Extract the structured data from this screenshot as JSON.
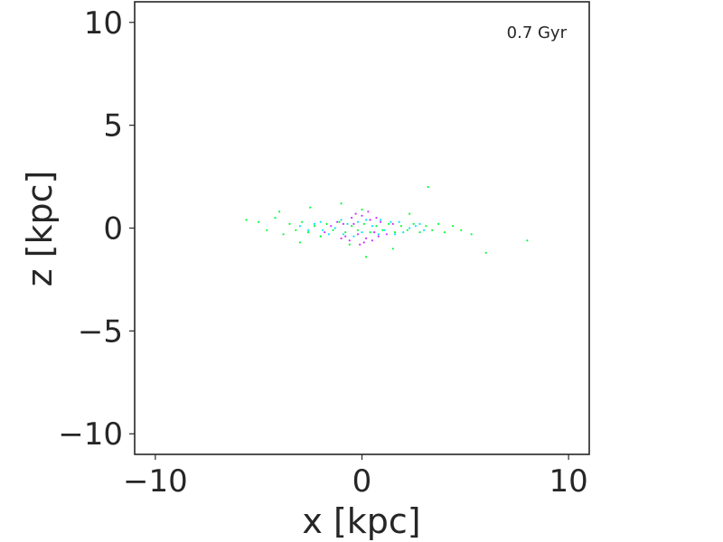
{
  "chart_data": {
    "type": "scatter",
    "xlabel": "x [kpc]",
    "ylabel": "z [kpc]",
    "xlim": [
      -11,
      11
    ],
    "ylim": [
      -11,
      11
    ],
    "xticks": [
      -10,
      0,
      10
    ],
    "yticks": [
      -10,
      -5,
      0,
      5,
      10
    ],
    "xtick_labels": [
      "−10",
      "0",
      "10"
    ],
    "ytick_labels": [
      "−10",
      "−5",
      "0",
      "5",
      "10"
    ],
    "annotation": "0.7 Gyr",
    "grid": false,
    "series": [
      {
        "color": "#cc33ff",
        "points": [
          [
            -1.2,
            0.3
          ],
          [
            -0.8,
            -0.4
          ],
          [
            -0.5,
            0.5
          ],
          [
            -0.2,
            -0.3
          ],
          [
            0.0,
            0.6
          ],
          [
            0.2,
            -0.5
          ],
          [
            0.4,
            0.4
          ],
          [
            0.6,
            -0.2
          ],
          [
            0.9,
            0.3
          ],
          [
            -0.3,
            0.7
          ],
          [
            0.1,
            -0.7
          ],
          [
            -0.9,
            0.2
          ],
          [
            1.2,
            -0.3
          ],
          [
            -1.5,
            0.1
          ],
          [
            0.7,
            0.5
          ],
          [
            -0.6,
            -0.6
          ],
          [
            0.3,
            0.8
          ],
          [
            -0.1,
            -0.8
          ],
          [
            1.5,
            0.2
          ],
          [
            -1.8,
            -0.2
          ],
          [
            0.5,
            -0.6
          ],
          [
            -0.4,
            0.2
          ],
          [
            0.8,
            -0.4
          ],
          [
            -1.0,
            -0.5
          ]
        ]
      },
      {
        "color": "#00e5ff",
        "points": [
          [
            -2.0,
            0.3
          ],
          [
            -1.6,
            -0.3
          ],
          [
            -1.0,
            0.4
          ],
          [
            -0.4,
            -0.4
          ],
          [
            0.2,
            0.4
          ],
          [
            0.8,
            -0.3
          ],
          [
            1.4,
            0.3
          ],
          [
            2.0,
            -0.2
          ],
          [
            2.6,
            0.1
          ],
          [
            -2.6,
            -0.1
          ],
          [
            -0.7,
            0.2
          ],
          [
            0.5,
            0.1
          ],
          [
            1.1,
            -0.1
          ],
          [
            -1.3,
            0.0
          ],
          [
            1.8,
            0.3
          ],
          [
            -2.3,
            0.2
          ],
          [
            3.0,
            -0.1
          ],
          [
            -3.0,
            0.1
          ],
          [
            0.0,
            -0.2
          ],
          [
            -0.2,
            0.3
          ],
          [
            2.3,
            0.0
          ],
          [
            -1.9,
            -0.1
          ],
          [
            1.6,
            -0.3
          ],
          [
            0.9,
            0.4
          ],
          [
            -0.9,
            -0.3
          ],
          [
            2.8,
            0.2
          ]
        ]
      },
      {
        "color": "#00ff33",
        "points": [
          [
            -5.6,
            0.4
          ],
          [
            -5.0,
            0.3
          ],
          [
            -4.6,
            -0.1
          ],
          [
            -4.2,
            0.5
          ],
          [
            -3.8,
            -0.3
          ],
          [
            -3.5,
            0.2
          ],
          [
            -3.2,
            -0.1
          ],
          [
            -2.9,
            0.3
          ],
          [
            -2.6,
            -0.2
          ],
          [
            -2.3,
            0.1
          ],
          [
            -2.0,
            -0.4
          ],
          [
            -1.7,
            0.2
          ],
          [
            -1.4,
            -0.1
          ],
          [
            -1.1,
            0.3
          ],
          [
            -0.8,
            -0.2
          ],
          [
            -0.5,
            0.1
          ],
          [
            -0.2,
            -0.1
          ],
          [
            0.1,
            0.2
          ],
          [
            0.4,
            -0.2
          ],
          [
            0.7,
            0.1
          ],
          [
            1.0,
            -0.1
          ],
          [
            1.3,
            0.2
          ],
          [
            1.6,
            -0.2
          ],
          [
            1.9,
            0.1
          ],
          [
            2.2,
            -0.1
          ],
          [
            2.5,
            0.2
          ],
          [
            2.8,
            -0.2
          ],
          [
            3.1,
            0.1
          ],
          [
            3.4,
            -0.1
          ],
          [
            3.7,
            0.2
          ],
          [
            4.0,
            -0.2
          ],
          [
            4.4,
            0.1
          ],
          [
            4.8,
            -0.1
          ],
          [
            5.3,
            -0.3
          ],
          [
            6.0,
            -1.2
          ],
          [
            8.0,
            -0.6
          ],
          [
            3.2,
            2.0
          ],
          [
            -1.0,
            1.2
          ],
          [
            0.2,
            -1.4
          ],
          [
            -2.5,
            1.0
          ],
          [
            1.5,
            -1.0
          ],
          [
            -4.0,
            0.8
          ],
          [
            2.3,
            0.7
          ],
          [
            -3.0,
            -0.7
          ],
          [
            0.0,
            0.9
          ],
          [
            -0.6,
            -0.8
          ]
        ]
      }
    ]
  }
}
